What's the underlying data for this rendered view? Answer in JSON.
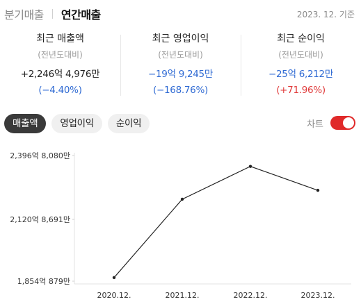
{
  "tabs": [
    {
      "label": "분기매출",
      "active": false
    },
    {
      "label": "연간매출",
      "active": true
    }
  ],
  "basis_date": "2023. 12. 기준",
  "metrics": [
    {
      "title": "최근 매출액",
      "sub": "(전년도대비)",
      "value": "+2,246억 4,976만",
      "value_color": "#222222",
      "rate": "(−4.40%)",
      "rate_color": "#2f6ad3"
    },
    {
      "title": "최근 영업이익",
      "sub": "(전년도대비)",
      "value": "−19억 9,245만",
      "value_color": "#2f6ad3",
      "rate": "(−168.76%)",
      "rate_color": "#2f6ad3"
    },
    {
      "title": "최근 순이익",
      "sub": "(전년도대비)",
      "value": "−25억 6,212만",
      "value_color": "#2f6ad3",
      "rate": "(+71.96%)",
      "rate_color": "#e03a3a"
    }
  ],
  "pills": [
    {
      "label": "매출액",
      "selected": true
    },
    {
      "label": "영업이익",
      "selected": false
    },
    {
      "label": "순이익",
      "selected": false
    }
  ],
  "chart_toggle": {
    "label": "차트",
    "on": true,
    "color": "#e02a2a"
  },
  "chart_data": {
    "type": "line",
    "categories": [
      "2020.12.",
      "2021.12.",
      "2022.12.",
      "2023.12."
    ],
    "values": [
      1869.6,
      2208.1,
      2349.9,
      2246.5
    ],
    "unit": "억",
    "yticks": [
      {
        "value": 2396.808,
        "label": "2,396억 8,080만"
      },
      {
        "value": 2120.8691,
        "label": "2,120억 8,691만"
      },
      {
        "value": 1854.0879,
        "label": "1,854억 879만"
      }
    ],
    "ylim": [
      1854.0879,
      2396.808
    ],
    "line_color": "#222222"
  }
}
